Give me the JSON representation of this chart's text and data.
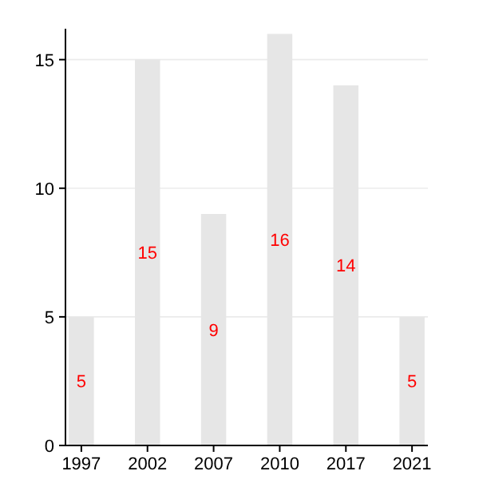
{
  "chart_data": {
    "type": "bar",
    "categories": [
      "1997",
      "2002",
      "2007",
      "2010",
      "2017",
      "2021"
    ],
    "values": [
      5,
      15,
      9,
      16,
      14,
      5
    ],
    "color": "#e6e6e6",
    "data_labels": true,
    "ylim": [
      0,
      16.2
    ],
    "yticks": [
      0,
      5,
      10,
      15
    ],
    "grid": "y"
  }
}
